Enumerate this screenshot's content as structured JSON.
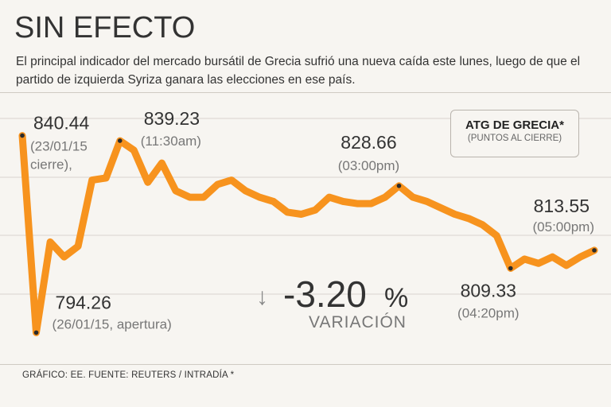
{
  "title": "SIN EFECTO",
  "subtitle": "El principal indicador del mercado bursátil de Grecia sufrió una nueva caída este lunes, luego de que el partido de izquierda Syriza ganara las elecciones en ese país.",
  "source": "GRÁFICO: EE. FUENTE: REUTERS / INTRADÍA *",
  "legend": {
    "title": "ATG DE GRECIA*",
    "subtitle": "(PUNTOS AL CIERRE)"
  },
  "variation": {
    "value": "-3.20",
    "unit": "%",
    "label": "VARIACIÓN",
    "arrow": "↓"
  },
  "colors": {
    "line": "#f7931e",
    "point": "#2b2b2b",
    "grid": "#d8d4ce"
  },
  "chart_data": {
    "type": "line",
    "grid": true,
    "ylim": [
      788,
      848
    ],
    "x": [
      "23/01/15 cierre",
      "26/01/15 apertura",
      "",
      "",
      "",
      "",
      "",
      "11:30am",
      "",
      "",
      "",
      "",
      "",
      "",
      "",
      "",
      "",
      "",
      "",
      "",
      "",
      "",
      "",
      "",
      "",
      "",
      "",
      "03:00pm",
      "",
      "",
      "",
      "",
      "",
      "",
      "",
      "04:20pm",
      "",
      "",
      "",
      "",
      "",
      "05:00pm"
    ],
    "series": [
      {
        "values": [
          840.44,
          794.26,
          815.5,
          812,
          814.5,
          830,
          830.5,
          839.23,
          837,
          829.5,
          834,
          827.5,
          826,
          826,
          829,
          830,
          827.5,
          826,
          825,
          822.5,
          822,
          823,
          826,
          825,
          824.5,
          824.5,
          826,
          828.66,
          826,
          825,
          823.5,
          822,
          821,
          819.5,
          817,
          809.33,
          811.5,
          810.5,
          812,
          810,
          812,
          813.55
        ]
      }
    ],
    "annotations": [
      {
        "index": 0,
        "value": "840.44",
        "label": "(23/01/15\ncierre),"
      },
      {
        "index": 1,
        "value": "794.26",
        "label": "(26/01/15, apertura)"
      },
      {
        "index": 7,
        "value": "839.23",
        "label": "(11:30am)"
      },
      {
        "index": 27,
        "value": "828.66",
        "label": "(03:00pm)"
      },
      {
        "index": 35,
        "value": "809.33",
        "label": "(04:20pm)"
      },
      {
        "index": 41,
        "value": "813.55",
        "label": "(05:00pm)"
      }
    ]
  }
}
